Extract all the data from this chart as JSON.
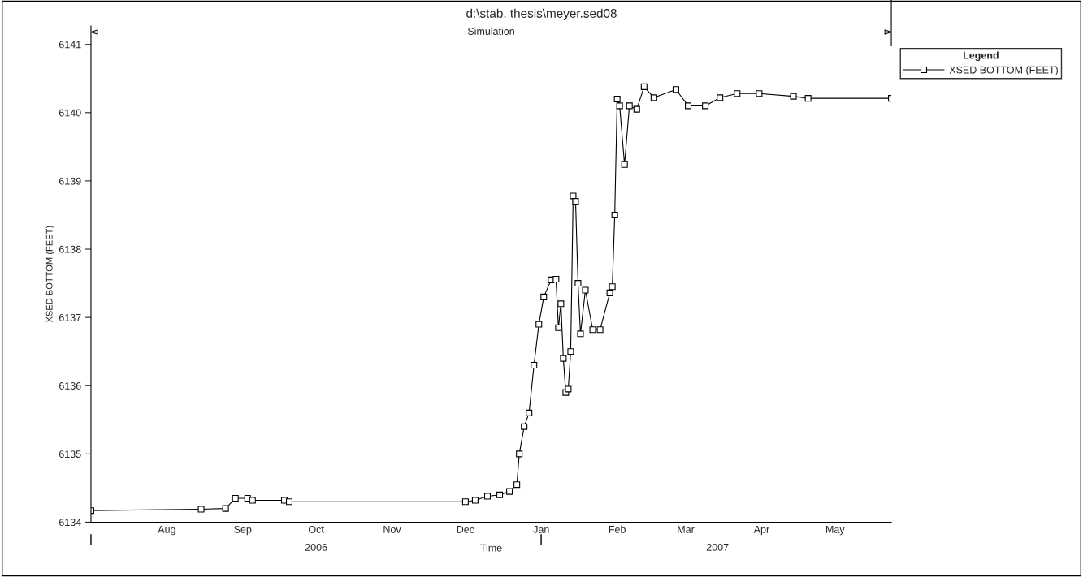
{
  "chart_data": {
    "type": "line",
    "title": "d:\\stab. thesis\\meyer.sed08",
    "xlabel": "Time",
    "ylabel": "XSED BOTTOM (FEET)",
    "legend_title": "Legend",
    "x": [
      "2006-07-01",
      "2006-08-15",
      "2006-08-25",
      "2006-08-29",
      "2006-09-03",
      "2006-09-05",
      "2006-09-18",
      "2006-09-20",
      "2006-12-01",
      "2006-12-05",
      "2006-12-10",
      "2006-12-15",
      "2006-12-19",
      "2006-12-22",
      "2006-12-23",
      "2006-12-25",
      "2006-12-27",
      "2006-12-29",
      "2006-12-31",
      "2007-01-02",
      "2007-01-05",
      "2007-01-07",
      "2007-01-08",
      "2007-01-09",
      "2007-01-10",
      "2007-01-11",
      "2007-01-12",
      "2007-01-13",
      "2007-01-14",
      "2007-01-15",
      "2007-01-16",
      "2007-01-17",
      "2007-01-19",
      "2007-01-22",
      "2007-01-25",
      "2007-01-29",
      "2007-01-30",
      "2007-01-31",
      "2007-02-01",
      "2007-02-02",
      "2007-02-04",
      "2007-02-06",
      "2007-02-09",
      "2007-02-12",
      "2007-02-16",
      "2007-02-25",
      "2007-03-02",
      "2007-03-09",
      "2007-03-15",
      "2007-03-22",
      "2007-03-31",
      "2007-04-14",
      "2007-04-20",
      "2007-05-24"
    ],
    "series": [
      {
        "name": "XSED BOTTOM (FEET)",
        "color": "#000000",
        "values": [
          6134.17,
          6134.19,
          6134.2,
          6134.35,
          6134.35,
          6134.32,
          6134.32,
          6134.3,
          6134.3,
          6134.32,
          6134.38,
          6134.4,
          6134.45,
          6134.55,
          6135.0,
          6135.4,
          6135.6,
          6136.3,
          6136.9,
          6137.3,
          6137.55,
          6137.56,
          6136.85,
          6137.2,
          6136.4,
          6135.9,
          6135.95,
          6136.5,
          6138.78,
          6138.7,
          6137.5,
          6136.76,
          6137.4,
          6136.82,
          6136.82,
          6137.36,
          6137.45,
          6138.5,
          6140.2,
          6140.1,
          6139.24,
          6140.1,
          6140.05,
          6140.38,
          6140.22,
          6140.34,
          6140.1,
          6140.1,
          6140.22,
          6140.28,
          6140.28,
          6140.24,
          6140.21,
          6140.21
        ]
      }
    ],
    "xlim": [
      "2006-07-01",
      "2007-05-24"
    ],
    "xticks": [
      {
        "value": "2006-08-01",
        "label": "Aug"
      },
      {
        "value": "2006-09-01",
        "label": "Sep"
      },
      {
        "value": "2006-10-01",
        "label": "Oct"
      },
      {
        "value": "2006-11-01",
        "label": "Nov"
      },
      {
        "value": "2006-12-01",
        "label": "Dec"
      },
      {
        "value": "2007-01-01",
        "label": "Jan"
      },
      {
        "value": "2007-02-01",
        "label": "Feb"
      },
      {
        "value": "2007-03-01",
        "label": "Mar"
      },
      {
        "value": "2007-04-01",
        "label": "Apr"
      },
      {
        "value": "2007-05-01",
        "label": "May"
      }
    ],
    "x2lim": [
      "2006-07-01",
      "2007-05-24"
    ],
    "x2ticks": [
      {
        "value": "2006-10-01",
        "label": "2006"
      },
      {
        "value": "2007-03-14",
        "label": "2007"
      }
    ],
    "ylim": [
      6134,
      6141.27
    ],
    "yticks": [
      6134,
      6135,
      6136,
      6137,
      6138,
      6139,
      6140,
      6141
    ],
    "ref_lines": [
      {
        "axis": "y",
        "value": 6141.18,
        "label": "Simulation",
        "color": "#000000"
      }
    ],
    "marker": "square",
    "line_style": "solid",
    "grid": false,
    "legend": "top right"
  }
}
